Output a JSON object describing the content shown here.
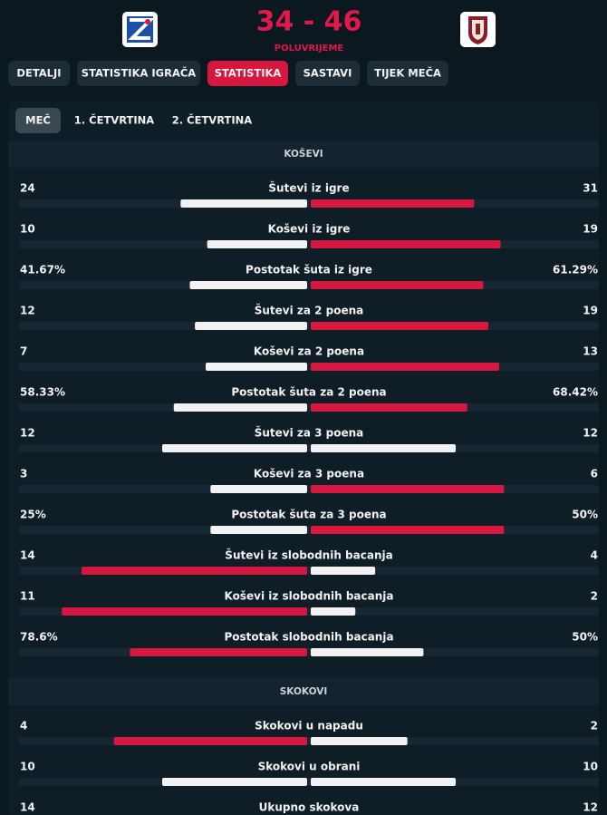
{
  "header": {
    "score": "34 - 46",
    "status": "POLUVRIJEME"
  },
  "tabs": [
    "DETALJI",
    "STATISTIKA IGRAČA",
    "STATISTIKA",
    "SASTAVI",
    "TIJEK MEČA"
  ],
  "subtabs": [
    "MEČ",
    "1. ČETVRTINA",
    "2. ČETVRTINA"
  ],
  "sections": [
    {
      "title": "KOŠEVI",
      "rows": [
        {
          "label": "Šutevi iz igre",
          "values": [
            24,
            31
          ]
        },
        {
          "label": "Koševi iz igre",
          "values": [
            10,
            19
          ]
        },
        {
          "label": "Postotak šuta iz igre",
          "values": [
            41.67,
            61.29
          ],
          "value_labels": [
            "41.67%",
            "61.29%"
          ]
        },
        {
          "label": "Šutevi za 2 poena",
          "values": [
            12,
            19
          ]
        },
        {
          "label": "Koševi za 2 poena",
          "values": [
            7,
            13
          ]
        },
        {
          "label": "Postotak šuta za 2 poena",
          "values": [
            58.33,
            68.42
          ],
          "value_labels": [
            "58.33%",
            "68.42%"
          ]
        },
        {
          "label": "Šutevi za 3 poena",
          "values": [
            12,
            12
          ]
        },
        {
          "label": "Koševi za 3 poena",
          "values": [
            3,
            6
          ]
        },
        {
          "label": "Postotak šuta za 3 poena",
          "values": [
            25,
            50
          ],
          "value_labels": [
            "25%",
            "50%"
          ]
        },
        {
          "label": "Šutevi iz slobodnih bacanja",
          "values": [
            14,
            4
          ]
        },
        {
          "label": "Koševi iz slobodnih bacanja",
          "values": [
            11,
            2
          ]
        },
        {
          "label": "Postotak slobodnih bacanja",
          "values": [
            78.6,
            50
          ],
          "value_labels": [
            "78.6%",
            "50%"
          ]
        }
      ]
    },
    {
      "title": "SKOKOVI",
      "rows": [
        {
          "label": "Skokovi u napadu",
          "values": [
            4,
            2
          ]
        },
        {
          "label": "Skokovi u obrani",
          "values": [
            10,
            10
          ]
        },
        {
          "label": "Ukupno skokova",
          "values": [
            14,
            12
          ]
        }
      ]
    }
  ]
}
